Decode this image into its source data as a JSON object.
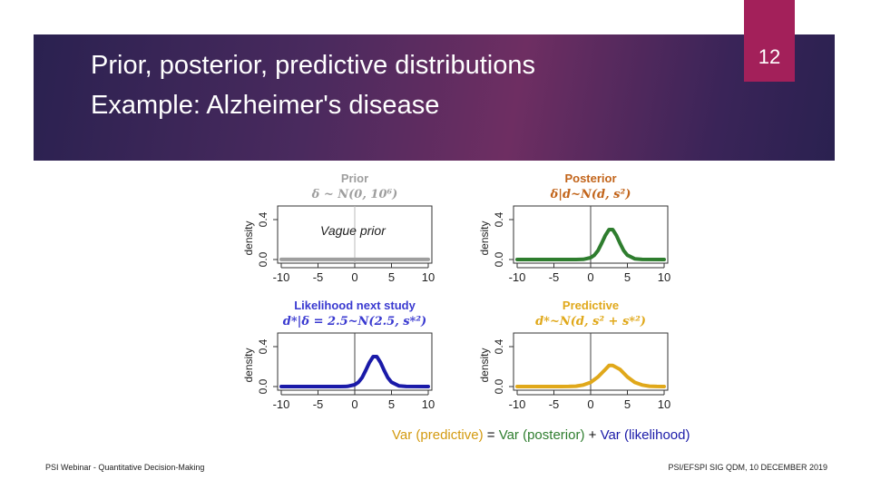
{
  "slide": {
    "title_line1": "Prior, posterior, predictive distributions",
    "title_line2": "Example: Alzheimer's disease",
    "page_number": "12",
    "footer_left": "PSI Webinar - Quantitative Decision-Making",
    "footer_right": "PSI/EFSPI SIG QDM, 10 DECEMBER 2019",
    "formula": {
      "predictive": "Var (predictive)",
      "eq": " = ",
      "posterior": "Var (posterior)",
      "plus": " + ",
      "likelihood": "Var (likelihood)"
    },
    "colors": {
      "banner": "#4a2a5e",
      "page_box": "#a3205a",
      "prior": "#9e9e9e",
      "posterior": "#2e7d2e",
      "likelihood": "#1a1aa8",
      "predictive": "#e0a81a"
    }
  },
  "chart_data": [
    {
      "type": "line",
      "title": "Prior",
      "subtitle": "δ ~ N(0, 10⁶)",
      "annotation": "Vague prior",
      "ylabel": "density",
      "xlim": [
        -10,
        10
      ],
      "ylim": [
        0,
        0.5
      ],
      "xticks": [
        "-10",
        "-5",
        "0",
        "5",
        "10"
      ],
      "yticks": [
        "0.0",
        "0.4"
      ],
      "vline": 0,
      "series": [
        {
          "color": "#9e9e9e",
          "x": [
            -10,
            10
          ],
          "y": [
            0.0005,
            0.0005
          ]
        }
      ]
    },
    {
      "type": "line",
      "title": "Posterior",
      "subtitle": "δ|d~N(d, s²)",
      "ylabel": "density",
      "xlim": [
        -10,
        10
      ],
      "ylim": [
        0,
        0.5
      ],
      "xticks": [
        "-10",
        "-5",
        "0",
        "5",
        "10"
      ],
      "yticks": [
        "0.0",
        "0.4"
      ],
      "vline": 0,
      "series": [
        {
          "color": "#2e7d2e",
          "x": [
            -10,
            -2,
            -1,
            0,
            0.5,
            1,
            1.5,
            2,
            2.5,
            3,
            3.5,
            4,
            4.5,
            5,
            6,
            7,
            10
          ],
          "y": [
            0,
            0,
            0.002,
            0.018,
            0.044,
            0.09,
            0.162,
            0.242,
            0.3,
            0.3,
            0.242,
            0.162,
            0.09,
            0.044,
            0.007,
            0.001,
            0
          ]
        }
      ]
    },
    {
      "type": "line",
      "title": "Likelihood next study",
      "subtitle": "d*|δ = 2.5~N(2.5, s*²)",
      "ylabel": "density",
      "xlim": [
        -10,
        10
      ],
      "ylim": [
        0,
        0.5
      ],
      "xticks": [
        "-10",
        "-5",
        "0",
        "5",
        "10"
      ],
      "yticks": [
        "0.0",
        "0.4"
      ],
      "vline": 0,
      "series": [
        {
          "color": "#1a1aa8",
          "x": [
            -10,
            -2,
            -1,
            0,
            0.5,
            1,
            1.5,
            2,
            2.5,
            3,
            3.5,
            4,
            4.5,
            5,
            6,
            7,
            10
          ],
          "y": [
            0,
            0,
            0.002,
            0.018,
            0.044,
            0.09,
            0.162,
            0.242,
            0.3,
            0.3,
            0.242,
            0.162,
            0.09,
            0.044,
            0.007,
            0.001,
            0
          ]
        }
      ]
    },
    {
      "type": "line",
      "title": "Predictive",
      "subtitle": "d*~N(d, s² + s*²)",
      "ylabel": "density",
      "xlim": [
        -10,
        10
      ],
      "ylim": [
        0,
        0.5
      ],
      "xticks": [
        "-10",
        "-5",
        "0",
        "5",
        "10"
      ],
      "yticks": [
        "0.0",
        "0.4"
      ],
      "vline": 0,
      "series": [
        {
          "color": "#e0a81a",
          "x": [
            -10,
            -4,
            -3,
            -2,
            -1,
            0,
            1,
            2,
            2.5,
            3,
            4,
            5,
            6,
            7,
            8,
            9,
            10
          ],
          "y": [
            0,
            0,
            0.001,
            0.004,
            0.015,
            0.042,
            0.096,
            0.172,
            0.212,
            0.212,
            0.172,
            0.096,
            0.042,
            0.015,
            0.004,
            0.001,
            0
          ]
        }
      ]
    }
  ]
}
